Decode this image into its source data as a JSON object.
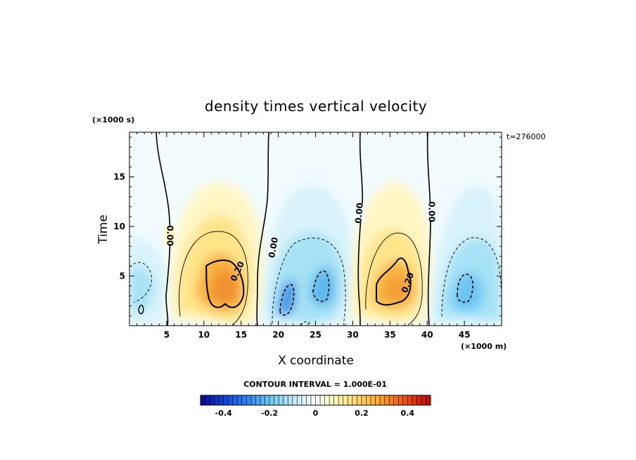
{
  "chart_data": {
    "type": "heatmap",
    "title": "density times vertical velocity",
    "xlabel": "X coordinate",
    "ylabel": "Time",
    "x_unit": "(×1000 m)",
    "y_unit": "(×1000 s)",
    "time_stamp": "t=276000",
    "xlim": [
      0,
      50
    ],
    "ylim": [
      0,
      19.5
    ],
    "xticks": [
      5,
      10,
      15,
      20,
      25,
      30,
      35,
      40,
      45
    ],
    "yticks": [
      5,
      10,
      15
    ],
    "contour_interval_text": "CONTOUR INTERVAL = 1.000E-01",
    "contour_labels": [
      "0.00",
      "0.00",
      "0.00",
      "0.00",
      "0.20",
      "0.20"
    ],
    "colorbar": {
      "range": [
        -0.5,
        0.5
      ],
      "tick_labels": [
        "-0.4",
        "-0.2",
        "0",
        "0.2",
        "0.4"
      ],
      "tick_values": [
        -0.4,
        -0.2,
        0,
        0.2,
        0.4
      ],
      "colors": [
        "#0a0a8c",
        "#1040d8",
        "#2f80f0",
        "#6cc6f2",
        "#bfeaf8",
        "#ffffff",
        "#fff6b0",
        "#ffd060",
        "#f89828",
        "#e84818",
        "#b80808"
      ]
    },
    "features": [
      {
        "x": 13.0,
        "y": 4.0,
        "value": 0.33
      },
      {
        "x": 35.8,
        "y": 4.8,
        "value": 0.3
      },
      {
        "x": 21.5,
        "y": 3.2,
        "value": -0.22
      },
      {
        "x": 26.0,
        "y": 4.5,
        "value": -0.18
      },
      {
        "x": 45.5,
        "y": 4.0,
        "value": -0.16
      },
      {
        "x": 1.5,
        "y": 4.5,
        "value": -0.08
      }
    ]
  }
}
